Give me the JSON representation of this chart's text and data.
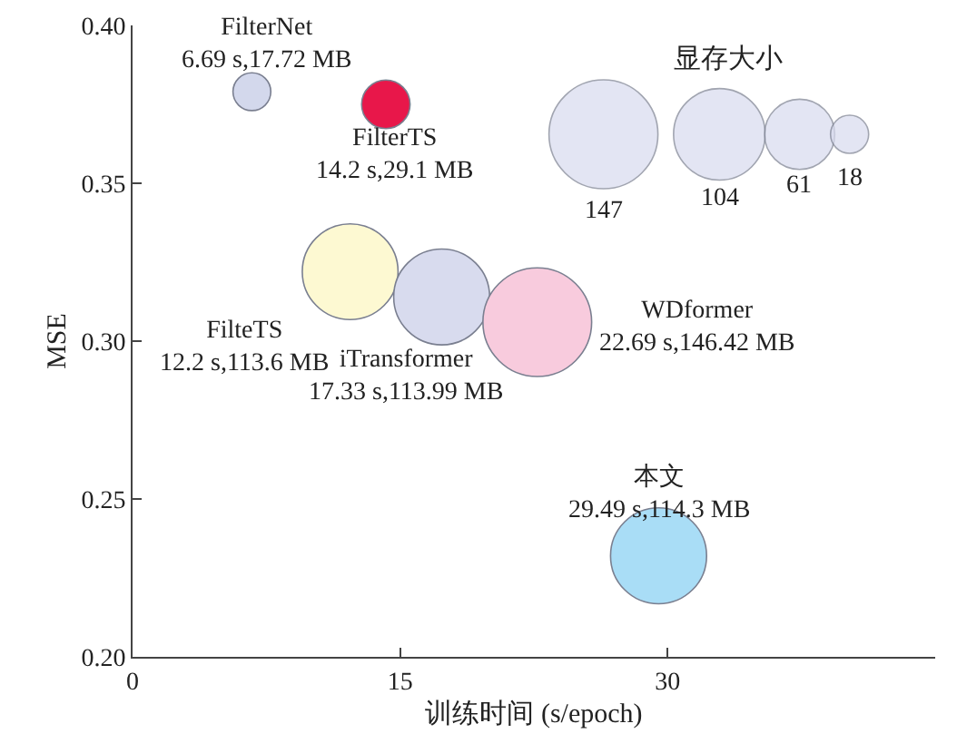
{
  "chart_data": {
    "type": "bubble",
    "xlabel": "训练时间 (s/epoch)",
    "ylabel": "MSE",
    "legend_title": "显存大小",
    "xlim": [
      0,
      45
    ],
    "xticks": [
      0,
      15,
      30
    ],
    "ylim": [
      0.2,
      0.4
    ],
    "yticks": [
      {
        "value": 0.2,
        "label": "0.20"
      },
      {
        "value": 0.25,
        "label": "0.25"
      },
      {
        "value": 0.3,
        "label": "0.30"
      },
      {
        "value": 0.35,
        "label": "0.35"
      },
      {
        "value": 0.4,
        "label": "0.40"
      }
    ],
    "size_legend": [
      147,
      104,
      61,
      18
    ],
    "grid": false,
    "series": [
      {
        "name": "FilterNet",
        "color": "#d3d8ec",
        "x": [
          6.69
        ],
        "values": [
          0.379
        ],
        "sizes": [
          17.72
        ],
        "value_labels": [
          "6.69 s,17.72 MB"
        ]
      },
      {
        "name": "FilterTS",
        "color": "#e8174a",
        "x": [
          14.2
        ],
        "values": [
          0.375
        ],
        "sizes": [
          29.1
        ],
        "value_labels": [
          "14.2 s,29.1 MB"
        ]
      },
      {
        "name": "FilteTS",
        "color": "#fdf9d2",
        "x": [
          12.2
        ],
        "values": [
          0.322
        ],
        "sizes": [
          113.6
        ],
        "value_labels": [
          "12.2 s,113.6 MB"
        ]
      },
      {
        "name": "iTransformer",
        "color": "#d8dbee",
        "x": [
          17.33
        ],
        "values": [
          0.314
        ],
        "sizes": [
          113.99
        ],
        "value_labels": [
          "17.33 s,113.99 MB"
        ]
      },
      {
        "name": "WDformer",
        "color": "#f8cbdd",
        "x": [
          22.69
        ],
        "values": [
          0.306
        ],
        "sizes": [
          146.42
        ],
        "value_labels": [
          "22.69 s,146.42 MB"
        ]
      },
      {
        "name": "本文",
        "color": "#a9ddf6",
        "x": [
          29.49
        ],
        "values": [
          0.232
        ],
        "sizes": [
          114.3
        ],
        "value_labels": [
          "29.49 s,114.3 MB"
        ]
      }
    ]
  }
}
